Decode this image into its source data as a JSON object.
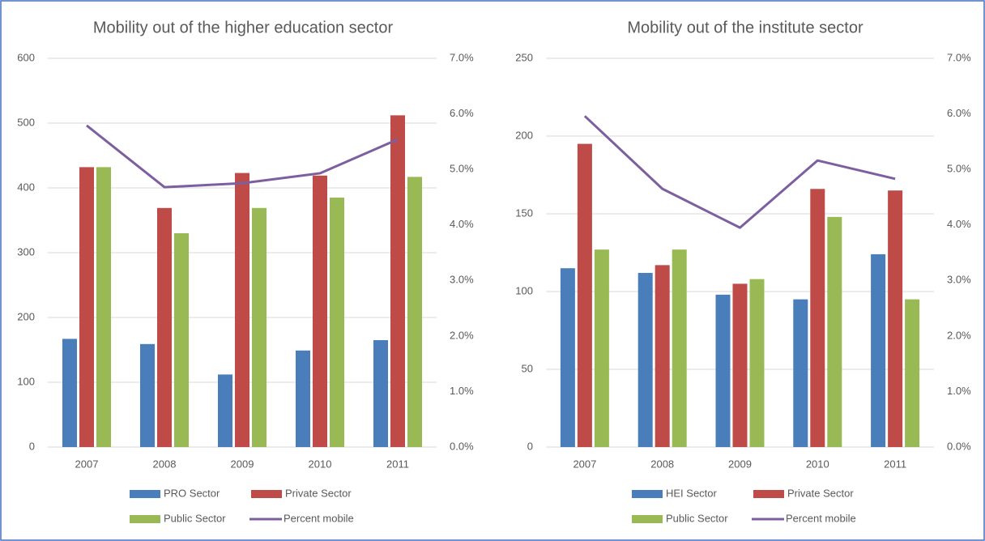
{
  "chart_data": [
    {
      "type": "bar",
      "title": "Mobility out of the higher education sector",
      "categories": [
        "2007",
        "2008",
        "2009",
        "2010",
        "2011"
      ],
      "series": [
        {
          "name": "PRO Sector",
          "color": "#4a7ebb",
          "values": [
            167,
            159,
            112,
            149,
            165
          ]
        },
        {
          "name": "Private Sector",
          "color": "#be4b48",
          "values": [
            432,
            369,
            423,
            419,
            512
          ]
        },
        {
          "name": "Public Sector",
          "color": "#98b954",
          "values": [
            432,
            330,
            369,
            385,
            417
          ]
        },
        {
          "name": "Percent mobile",
          "type": "line",
          "axis": "y2",
          "color": "#7d5fa0",
          "values": [
            5.79,
            4.68,
            4.75,
            4.93,
            5.54
          ]
        }
      ],
      "ylim": [
        0,
        600
      ],
      "yticks": [
        0,
        100,
        200,
        300,
        400,
        500,
        600
      ],
      "y2lim": [
        0,
        7
      ],
      "y2ticks": [
        {
          "value": 0,
          "label": "0.0%"
        },
        {
          "value": 1,
          "label": "1.0%"
        },
        {
          "value": 2,
          "label": "2.0%"
        },
        {
          "value": 3,
          "label": "3.0%"
        },
        {
          "value": 4,
          "label": "4.0%"
        },
        {
          "value": 5,
          "label": "5.0%"
        },
        {
          "value": 6,
          "label": "6.0%"
        },
        {
          "value": 7,
          "label": "7.0%"
        }
      ],
      "grid": true,
      "legend": "bottom"
    },
    {
      "type": "bar",
      "title": "Mobility out of the institute sector",
      "categories": [
        "2007",
        "2008",
        "2009",
        "2010",
        "2011"
      ],
      "series": [
        {
          "name": "HEI Sector",
          "color": "#4a7ebb",
          "values": [
            115,
            112,
            98,
            95,
            124
          ]
        },
        {
          "name": "Private Sector",
          "color": "#be4b48",
          "values": [
            195,
            117,
            105,
            166,
            165
          ]
        },
        {
          "name": "Public Sector",
          "color": "#98b954",
          "values": [
            127,
            127,
            108,
            148,
            95
          ]
        },
        {
          "name": "Percent mobile",
          "type": "line",
          "axis": "y2",
          "color": "#7d5fa0",
          "values": [
            5.96,
            4.65,
            3.95,
            5.16,
            4.83
          ]
        }
      ],
      "ylim": [
        0,
        250
      ],
      "yticks": [
        0,
        50,
        100,
        150,
        200,
        250
      ],
      "y2lim": [
        0,
        7
      ],
      "y2ticks": [
        {
          "value": 0,
          "label": "0.0%"
        },
        {
          "value": 1,
          "label": "1.0%"
        },
        {
          "value": 2,
          "label": "2.0%"
        },
        {
          "value": 3,
          "label": "3.0%"
        },
        {
          "value": 4,
          "label": "4.0%"
        },
        {
          "value": 5,
          "label": "5.0%"
        },
        {
          "value": 6,
          "label": "6.0%"
        },
        {
          "value": 7,
          "label": "7.0%"
        }
      ],
      "grid": true,
      "legend": "bottom"
    }
  ]
}
